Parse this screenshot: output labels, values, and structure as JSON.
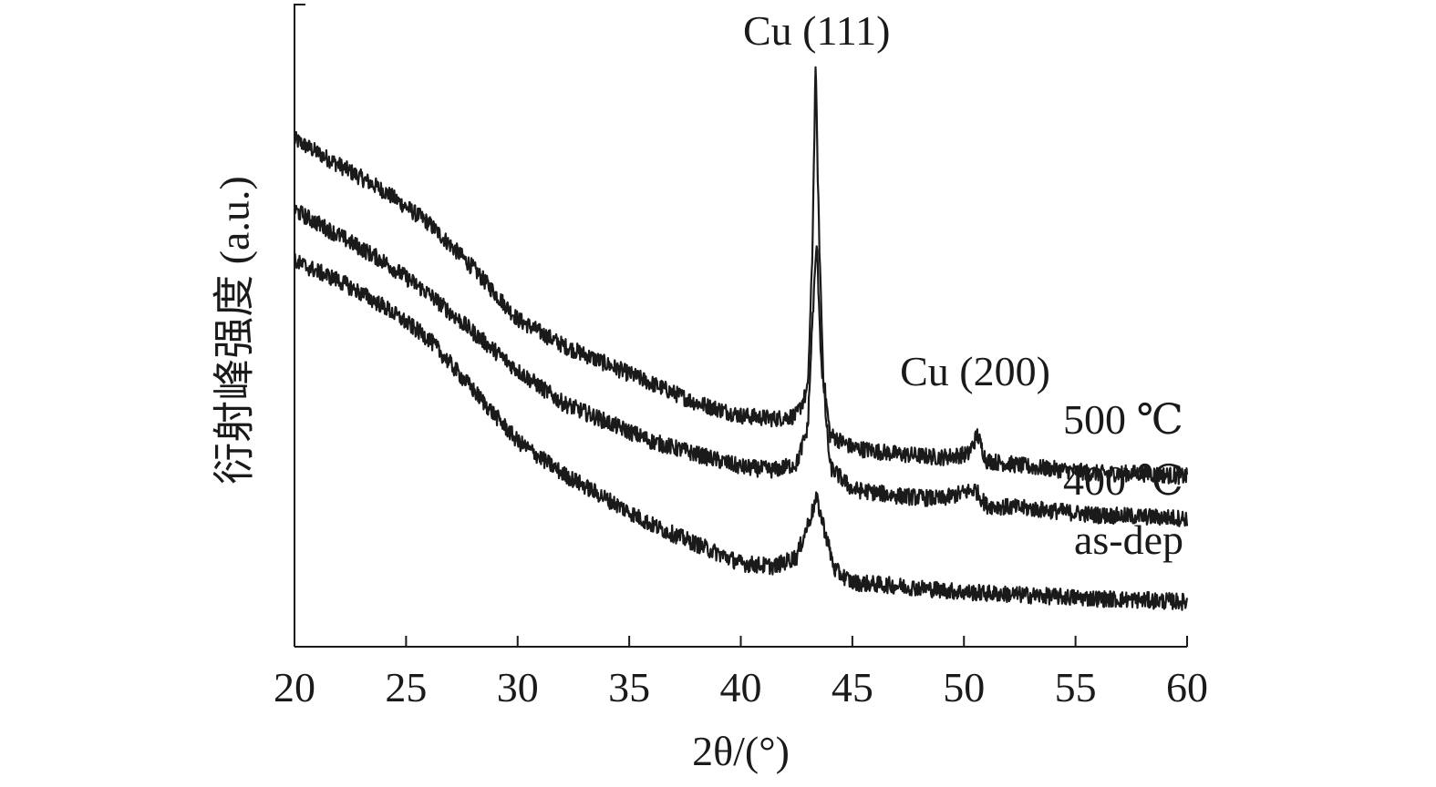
{
  "chart_data": {
    "type": "line",
    "title": "",
    "xlabel": "2θ/(°)",
    "ylabel": "衍射峰强度 (a.u.)",
    "xlim": [
      20,
      60
    ],
    "ylim": [
      0,
      100
    ],
    "x_ticks": [
      20,
      25,
      30,
      35,
      40,
      45,
      50,
      55,
      60
    ],
    "y_ticks_shown": false,
    "grid": false,
    "legend": "none",
    "series": [
      {
        "name": "500 ℃",
        "points": [
          [
            20,
            79
          ],
          [
            22,
            75
          ],
          [
            24,
            71
          ],
          [
            26,
            66
          ],
          [
            28,
            59
          ],
          [
            30,
            51
          ],
          [
            32,
            47
          ],
          [
            34,
            44
          ],
          [
            36,
            41
          ],
          [
            38,
            38
          ],
          [
            40,
            36
          ],
          [
            41.5,
            35.5
          ],
          [
            42.5,
            36
          ],
          [
            43.0,
            40
          ],
          [
            43.2,
            60
          ],
          [
            43.35,
            91
          ],
          [
            43.5,
            65
          ],
          [
            43.7,
            42
          ],
          [
            44,
            33
          ],
          [
            45,
            31
          ],
          [
            47,
            30
          ],
          [
            49,
            29.5
          ],
          [
            50.2,
            30
          ],
          [
            50.6,
            33
          ],
          [
            51,
            29
          ],
          [
            53,
            28
          ],
          [
            56,
            27
          ],
          [
            58,
            27
          ],
          [
            60,
            26.5
          ]
        ]
      },
      {
        "name": "400 ℃",
        "points": [
          [
            20,
            68
          ],
          [
            22,
            64
          ],
          [
            24,
            60
          ],
          [
            26,
            55
          ],
          [
            28,
            49
          ],
          [
            30,
            43
          ],
          [
            32,
            38
          ],
          [
            34,
            35
          ],
          [
            36,
            32
          ],
          [
            38,
            30
          ],
          [
            40,
            28
          ],
          [
            41.5,
            27.5
          ],
          [
            42.5,
            28.5
          ],
          [
            43.0,
            34
          ],
          [
            43.2,
            50
          ],
          [
            43.4,
            63
          ],
          [
            43.6,
            45
          ],
          [
            44,
            28
          ],
          [
            45,
            24.5
          ],
          [
            47,
            23.5
          ],
          [
            49,
            23
          ],
          [
            50.5,
            24.5
          ],
          [
            51,
            22
          ],
          [
            53,
            21.5
          ],
          [
            56,
            20.5
          ],
          [
            60,
            20
          ]
        ]
      },
      {
        "name": "as-dep",
        "points": [
          [
            20,
            60
          ],
          [
            22,
            57
          ],
          [
            24,
            53
          ],
          [
            26,
            48
          ],
          [
            28,
            40
          ],
          [
            30,
            32
          ],
          [
            32,
            27
          ],
          [
            34,
            23
          ],
          [
            36,
            19
          ],
          [
            38,
            16
          ],
          [
            40,
            13
          ],
          [
            41.5,
            12.5
          ],
          [
            42.5,
            14
          ],
          [
            43.1,
            20
          ],
          [
            43.4,
            23
          ],
          [
            43.7,
            19
          ],
          [
            44.2,
            12
          ],
          [
            45,
            10
          ],
          [
            47,
            9.5
          ],
          [
            50,
            8.5
          ],
          [
            53,
            8
          ],
          [
            56,
            7.5
          ],
          [
            60,
            7
          ]
        ]
      }
    ],
    "annotations": [
      {
        "text": "Cu (111)",
        "x": 43.4,
        "y": 96
      },
      {
        "text": "Cu (200)",
        "x": 50.5,
        "y": 43
      }
    ]
  }
}
